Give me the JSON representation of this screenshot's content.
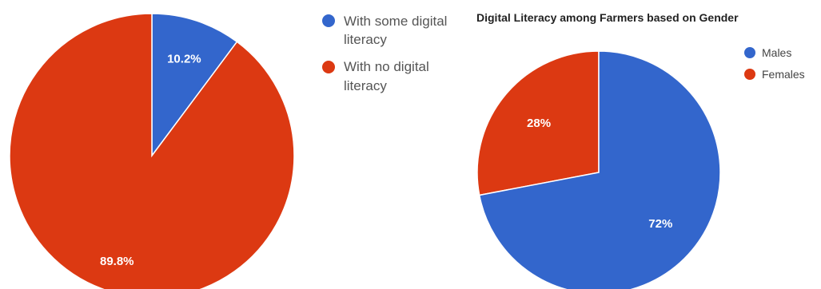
{
  "chart_data": [
    {
      "type": "pie",
      "title": "",
      "categories": [
        "With some digital literacy",
        "With no digital literacy"
      ],
      "values": [
        10.2,
        89.8
      ],
      "value_labels": [
        "10.2%",
        "89.8%"
      ],
      "colors": [
        "#3366cc",
        "#dc3912"
      ],
      "legend": {
        "position": "right",
        "entries": [
          {
            "lines": [
              "With some digital",
              "literacy"
            ]
          },
          {
            "lines": [
              "With no digital",
              "literacy"
            ]
          }
        ]
      }
    },
    {
      "type": "pie",
      "title": "Digital Literacy among Farmers based on Gender",
      "categories": [
        "Males",
        "Females"
      ],
      "values": [
        72,
        28
      ],
      "value_labels": [
        "72%",
        "28%"
      ],
      "colors": [
        "#3366cc",
        "#dc3912"
      ],
      "legend": {
        "position": "right",
        "entries": [
          {
            "lines": [
              "Males"
            ]
          },
          {
            "lines": [
              "Females"
            ]
          }
        ]
      }
    }
  ]
}
